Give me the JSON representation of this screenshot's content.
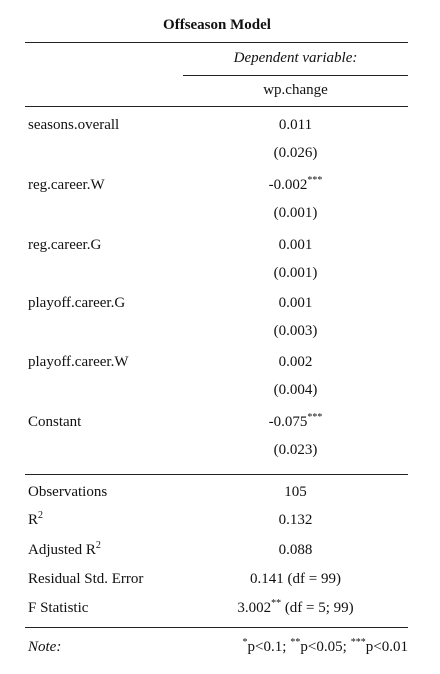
{
  "title": "Offseason Model",
  "dependent_label": "Dependent variable:",
  "dependent_variable": "wp.change",
  "coefficients": [
    {
      "name": "seasons.overall",
      "estimate": "0.011",
      "se": "(0.026)"
    },
    {
      "name": "reg.career.W",
      "estimate": "-0.002",
      "stars": "***",
      "se": "(0.001)"
    },
    {
      "name": "reg.career.G",
      "estimate": "0.001",
      "se": "(0.001)"
    },
    {
      "name": "playoff.career.G",
      "estimate": "0.001",
      "se": "(0.003)"
    },
    {
      "name": "playoff.career.W",
      "estimate": "0.002",
      "se": "(0.004)"
    },
    {
      "name": "Constant",
      "estimate": "-0.075",
      "stars": "***",
      "se": "(0.023)"
    }
  ],
  "statistics": [
    {
      "label": "Observations",
      "value": "105"
    },
    {
      "label": "R",
      "label_sup": "2",
      "value": "0.132"
    },
    {
      "label": "Adjusted R",
      "label_sup": "2",
      "value": "0.088"
    },
    {
      "label": "Residual Std. Error",
      "value": "0.141 (df = 99)"
    },
    {
      "label": "F Statistic",
      "value": "3.002",
      "value_sup": "**",
      "value_rest": " (df = 5; 99)"
    }
  ],
  "note": {
    "label": "Note:",
    "parts": [
      {
        "sup": "*",
        "text": "p<0.1;"
      },
      {
        "sup": "**",
        "text": "p<0.05;"
      },
      {
        "sup": "***",
        "text": "p<0.01"
      }
    ]
  }
}
